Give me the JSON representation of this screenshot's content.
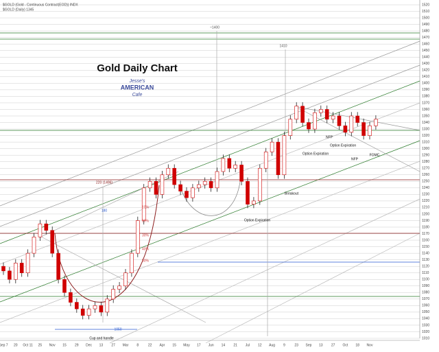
{
  "header": {
    "symbol": "$GOLD (Gold - Continuous Contract(EOD)) INDX",
    "sub": "$GOLD (Daily) 1345"
  },
  "logo": {
    "top": "Jesse's",
    "mid": "AMERICAN",
    "bottom": "Cafe"
  },
  "chart_data": {
    "type": "candlestick",
    "title": "Gold Daily Chart",
    "categories": [
      "Sep 7",
      null,
      "20",
      null,
      "Oct 11",
      null,
      "25",
      null,
      "Nov",
      null,
      "15",
      null,
      "29",
      null,
      "Dec",
      null,
      "13",
      null,
      "27",
      null,
      "Mar",
      null,
      "8",
      null,
      "22",
      null,
      "Apr",
      null,
      "15",
      null,
      "May",
      null,
      "17",
      null,
      "Jun",
      null,
      "14",
      null,
      "21",
      null,
      "Jul",
      null,
      "12",
      null,
      "Aug",
      null,
      "9",
      null,
      "23",
      null,
      "Sep",
      null,
      "13",
      null,
      "27",
      null,
      "Oct",
      null,
      "18",
      null,
      "Nov",
      null
    ],
    "open": [
      1120,
      1113,
      1100,
      1125,
      1110,
      1140,
      1165,
      1185,
      1175,
      1140,
      1100,
      1080,
      1065,
      1055,
      1045,
      1055,
      1060,
      1050,
      1070,
      1085,
      1090,
      1110,
      1140,
      1190,
      1240,
      1250,
      1230,
      1260,
      1270,
      1245,
      1235,
      1225,
      1240,
      1245,
      1250,
      1240,
      1265,
      1285,
      1270,
      1275,
      1250,
      1215,
      1220,
      1270,
      1295,
      1310,
      1260,
      1320,
      1345,
      1365,
      1340,
      1330,
      1355,
      1360,
      1345,
      1350,
      1335,
      1325,
      1350,
      1340,
      1320,
      1335
    ],
    "high": [
      1126,
      1119,
      1131,
      1131,
      1146,
      1171,
      1191,
      1191,
      1181,
      1146,
      1106,
      1086,
      1071,
      1061,
      1061,
      1066,
      1066,
      1076,
      1091,
      1096,
      1116,
      1146,
      1196,
      1246,
      1256,
      1256,
      1266,
      1276,
      1276,
      1251,
      1241,
      1246,
      1251,
      1256,
      1256,
      1271,
      1291,
      1291,
      1281,
      1281,
      1256,
      1226,
      1276,
      1301,
      1316,
      1316,
      1326,
      1351,
      1371,
      1371,
      1346,
      1361,
      1366,
      1366,
      1356,
      1356,
      1341,
      1356,
      1356,
      1346,
      1341,
      1351
    ],
    "low": [
      1107,
      1094,
      1094,
      1104,
      1104,
      1134,
      1159,
      1169,
      1134,
      1094,
      1074,
      1059,
      1049,
      1039,
      1039,
      1049,
      1044,
      1044,
      1064,
      1079,
      1084,
      1104,
      1134,
      1184,
      1234,
      1224,
      1224,
      1254,
      1239,
      1229,
      1219,
      1219,
      1234,
      1239,
      1234,
      1234,
      1259,
      1264,
      1264,
      1244,
      1209,
      1209,
      1214,
      1264,
      1289,
      1254,
      1254,
      1314,
      1339,
      1334,
      1324,
      1324,
      1349,
      1339,
      1339,
      1329,
      1319,
      1319,
      1334,
      1314,
      1314,
      1329
    ],
    "close": [
      1113,
      1100,
      1125,
      1110,
      1140,
      1165,
      1185,
      1175,
      1140,
      1100,
      1080,
      1065,
      1055,
      1045,
      1055,
      1060,
      1050,
      1070,
      1085,
      1090,
      1110,
      1140,
      1190,
      1240,
      1250,
      1230,
      1260,
      1270,
      1245,
      1235,
      1225,
      1240,
      1245,
      1250,
      1240,
      1265,
      1285,
      1270,
      1275,
      1250,
      1215,
      1220,
      1270,
      1295,
      1310,
      1260,
      1320,
      1345,
      1365,
      1340,
      1330,
      1355,
      1360,
      1345,
      1350,
      1335,
      1325,
      1350,
      1340,
      1320,
      1335,
      1345
    ],
    "color": "#d00000",
    "ylim": [
      1010,
      1520
    ],
    "yticks": [
      1010,
      1020,
      1030,
      1040,
      1050,
      1060,
      1070,
      1080,
      1090,
      1100,
      1110,
      1120,
      1130,
      1140,
      1150,
      1160,
      1170,
      1180,
      1190,
      1200,
      1210,
      1220,
      1230,
      1240,
      1250,
      1260,
      1270,
      1280,
      1290,
      1300,
      1310,
      1320,
      1330,
      1340,
      1350,
      1360,
      1370,
      1380,
      1390,
      1400,
      1410,
      1420,
      1430,
      1440,
      1450,
      1460,
      1470,
      1480,
      1490,
      1500,
      1510,
      1520
    ],
    "grid": true,
    "annotations": [
      "~1400",
      "1410",
      "220 (1496)",
      "180",
      "10%",
      "20%",
      "30%",
      "40%",
      "50%",
      "Cup and handle",
      "1050",
      "Option Expiration",
      "Option Expiration",
      "Option Expiration",
      "Breakout",
      "NFP",
      "NFP",
      "FOMC"
    ]
  }
}
